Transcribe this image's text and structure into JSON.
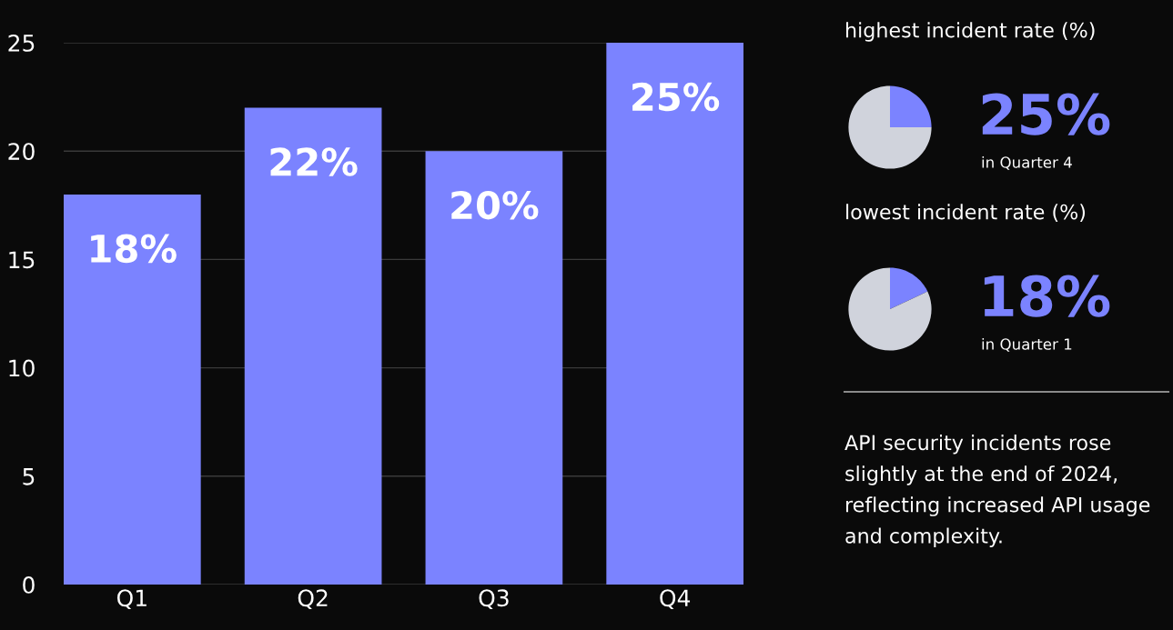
{
  "chart_data": [
    {
      "type": "bar",
      "categories": [
        "Q1",
        "Q2",
        "Q3",
        "Q4"
      ],
      "values": [
        18,
        22,
        20,
        25
      ],
      "color": "#7b83ff",
      "ylim": [
        0,
        25
      ],
      "yticks": [
        0,
        5,
        10,
        15,
        20,
        25
      ],
      "grid": "y",
      "value_labels": [
        "18%",
        "22%",
        "20%",
        "25%"
      ]
    },
    {
      "type": "pie",
      "title": "highest incident rate (%)",
      "categories": [
        null,
        null
      ],
      "values": [
        25,
        75
      ],
      "colors": [
        "#7b83ff",
        "#d0d3dc"
      ],
      "value_labels": [
        "25%",
        null
      ],
      "annotations": [
        "in Quarter 4"
      ]
    },
    {
      "type": "pie",
      "title": "lowest incident rate (%)",
      "categories": [
        null,
        null
      ],
      "values": [
        18,
        82
      ],
      "colors": [
        "#7b83ff",
        "#d0d3dc"
      ],
      "value_labels": [
        "18%",
        null
      ],
      "annotations": [
        "in Quarter 1"
      ]
    },
    {
      "type": "other",
      "annotations": [
        "API security incidents rose\nslightly at the end of 2024,\nreflecting increased API usage\nand complexity."
      ]
    }
  ]
}
